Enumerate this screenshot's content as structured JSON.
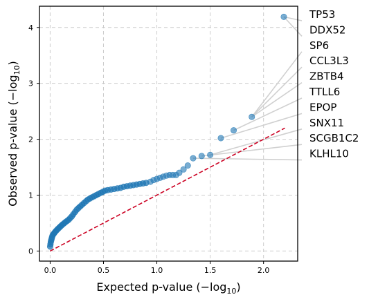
{
  "chart_data": {
    "type": "scatter",
    "title": "",
    "xlabel": "Expected p-value (−log",
    "xlabel_sub": "10",
    "xlabel_suffix": ")",
    "ylabel": "Observed p-value (−log",
    "ylabel_sub": "10",
    "ylabel_suffix": ")",
    "xlim": [
      -0.1,
      2.32
    ],
    "ylim": [
      -0.18,
      4.38
    ],
    "x_ticks": [
      0.0,
      0.5,
      1.0,
      1.5,
      2.0
    ],
    "x_tick_labels": [
      "0.0",
      "0.5",
      "1.0",
      "1.5",
      "2.0"
    ],
    "y_ticks": [
      0,
      1,
      2,
      3,
      4
    ],
    "y_tick_labels": [
      "0",
      "1",
      "2",
      "3",
      "4"
    ],
    "grid": true,
    "reference_line": {
      "x": [
        0.0,
        2.2
      ],
      "y": [
        0.0,
        2.2
      ],
      "style": "dashed",
      "color": "#cc0022"
    },
    "points_color": "#1f77b4",
    "dense_points": [
      [
        0.0,
        0.08
      ],
      [
        0.003,
        0.12
      ],
      [
        0.006,
        0.16
      ],
      [
        0.01,
        0.19
      ],
      [
        0.014,
        0.22
      ],
      [
        0.018,
        0.25
      ],
      [
        0.023,
        0.28
      ],
      [
        0.03,
        0.3
      ],
      [
        0.038,
        0.32
      ],
      [
        0.046,
        0.34
      ],
      [
        0.055,
        0.36
      ],
      [
        0.065,
        0.38
      ],
      [
        0.075,
        0.4
      ],
      [
        0.086,
        0.42
      ],
      [
        0.097,
        0.44
      ],
      [
        0.108,
        0.46
      ],
      [
        0.12,
        0.48
      ],
      [
        0.133,
        0.5
      ],
      [
        0.146,
        0.52
      ],
      [
        0.16,
        0.54
      ],
      [
        0.174,
        0.56
      ],
      [
        0.188,
        0.59
      ],
      [
        0.203,
        0.62
      ],
      [
        0.218,
        0.66
      ],
      [
        0.234,
        0.7
      ],
      [
        0.25,
        0.74
      ],
      [
        0.266,
        0.77
      ],
      [
        0.283,
        0.8
      ],
      [
        0.3,
        0.83
      ],
      [
        0.318,
        0.86
      ],
      [
        0.336,
        0.89
      ],
      [
        0.354,
        0.92
      ],
      [
        0.373,
        0.94
      ],
      [
        0.392,
        0.96
      ],
      [
        0.412,
        0.98
      ],
      [
        0.432,
        1.0
      ],
      [
        0.452,
        1.02
      ],
      [
        0.473,
        1.04
      ],
      [
        0.494,
        1.06
      ],
      [
        0.515,
        1.08
      ],
      [
        0.54,
        1.09
      ],
      [
        0.57,
        1.1
      ],
      [
        0.6,
        1.11
      ],
      [
        0.63,
        1.12
      ],
      [
        0.66,
        1.13
      ],
      [
        0.69,
        1.15
      ],
      [
        0.72,
        1.16
      ],
      [
        0.75,
        1.17
      ],
      [
        0.78,
        1.18
      ],
      [
        0.81,
        1.19
      ],
      [
        0.84,
        1.2
      ],
      [
        0.87,
        1.21
      ],
      [
        0.9,
        1.22
      ]
    ],
    "sparse_points": [
      [
        0.94,
        1.24
      ],
      [
        0.97,
        1.27
      ],
      [
        1.0,
        1.29
      ],
      [
        1.03,
        1.31
      ],
      [
        1.06,
        1.33
      ],
      [
        1.09,
        1.35
      ],
      [
        1.12,
        1.36
      ],
      [
        1.15,
        1.36
      ],
      [
        1.18,
        1.36
      ],
      [
        1.21,
        1.4
      ],
      [
        1.25,
        1.46
      ],
      [
        1.29,
        1.53
      ]
    ],
    "labeled_points": [
      {
        "gene": "KLHL10",
        "x": 1.34,
        "y": 1.66
      },
      {
        "gene": "SCGB1C2",
        "x": 1.42,
        "y": 1.7
      },
      {
        "gene": "SNX11",
        "x": 1.5,
        "y": 1.72
      },
      {
        "gene": "EPOP",
        "x": 1.6,
        "y": 2.02
      },
      {
        "gene": "TTLL6",
        "x": 1.72,
        "y": 2.16
      },
      {
        "gene": "ZBTB4",
        "x": 1.89,
        "y": 2.4
      },
      {
        "gene": "CCL3L3",
        "x": 1.89,
        "y": 2.4
      },
      {
        "gene": "SP6",
        "x": 1.89,
        "y": 2.4
      },
      {
        "gene": "DDX52",
        "x": 2.19,
        "y": 4.19
      },
      {
        "gene": "TP53",
        "x": 2.19,
        "y": 4.19
      }
    ],
    "legend_labels_top_to_bottom": [
      "TP53",
      "DDX52",
      "SP6",
      "CCL3L3",
      "ZBTB4",
      "TTLL6",
      "EPOP",
      "SNX11",
      "SCGB1C2",
      "KLHL10"
    ]
  }
}
